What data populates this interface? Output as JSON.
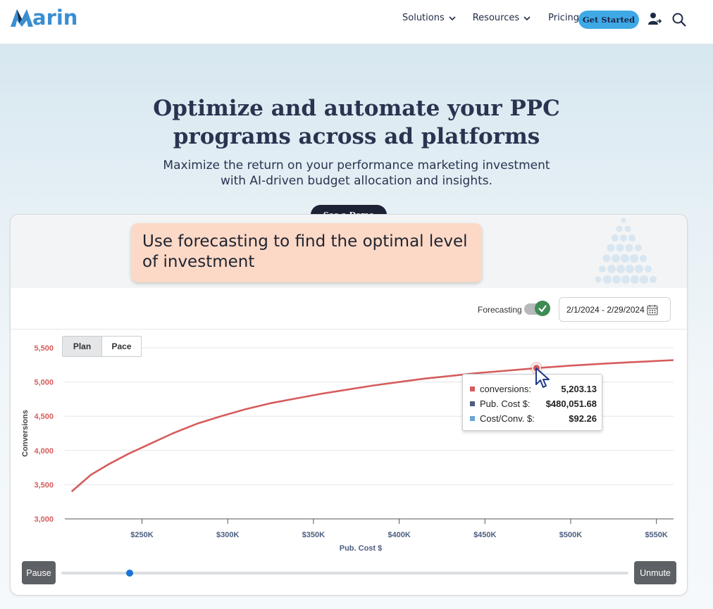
{
  "header": {
    "logo_text": "arin",
    "nav": [
      {
        "label": "Solutions",
        "has_dropdown": true
      },
      {
        "label": "Resources",
        "has_dropdown": true
      },
      {
        "label": "Pricing",
        "has_dropdown": false
      }
    ],
    "cta_label": "Get Started",
    "icons": [
      "user-arrow-icon",
      "search-icon"
    ]
  },
  "hero": {
    "title": "Optimize and automate your PPC programs across ad platforms",
    "subtitle": "Maximize the return on your performance marketing investment with AI-driven budget allocation and insights.",
    "demo_label": "See a Demo"
  },
  "card": {
    "callout": "Use forecasting to find the optimal level of investment",
    "forecasting_label": "Forecasting",
    "forecasting_on": true,
    "date_range": "2/1/2024 - 2/29/2024",
    "tabs": [
      "Plan",
      "Pace"
    ],
    "active_tab": "Plan",
    "tooltip": {
      "rows": [
        {
          "label": "conversions:",
          "value": "5,203.13",
          "color": "#d65c5c"
        },
        {
          "label": "Pub. Cost $:",
          "value": "$480,051.68",
          "color": "#4c5d80"
        },
        {
          "label": "Cost/Conv. $:",
          "value": "$92.26",
          "color": "#6aa5d6"
        }
      ]
    },
    "player": {
      "pause_label": "Pause",
      "unmute_label": "Unmute",
      "progress": 0.12
    }
  },
  "colors": {
    "brand_blue": "#3a8fd1",
    "cta_blue": "#3fa9e6",
    "dark_button": "#1e2235",
    "line_red": "#d65c5c",
    "callout_bg": "#fcd9c7",
    "toggle_green": "#3f8b54"
  },
  "chart_data": {
    "type": "line",
    "xlabel": "Pub. Cost $",
    "ylabel": "Conversions",
    "xlim": [
      205000,
      560000
    ],
    "ylim": [
      3000,
      5500
    ],
    "x_ticks": [
      250000,
      300000,
      350000,
      400000,
      450000,
      500000,
      550000
    ],
    "x_tick_labels": [
      "$250K",
      "$300K",
      "$350K",
      "$400K",
      "$450K",
      "$500K",
      "$550K"
    ],
    "y_ticks": [
      3000,
      3500,
      4000,
      4500,
      5000,
      5500
    ],
    "y_tick_labels": [
      "3,000",
      "3,500",
      "4,000",
      "4,500",
      "5,000",
      "5,500"
    ],
    "grid": true,
    "series": [
      {
        "color": "#d65c5c",
        "x": [
          209000,
          220000,
          230000,
          242000,
          255000,
          268000,
          282000,
          296000,
          310000,
          325000,
          340000,
          355000,
          370000,
          385000,
          400000,
          415000,
          430000,
          445000,
          460000,
          480000,
          500000,
          520000,
          540000,
          560000
        ],
        "y": [
          3400,
          3640,
          3790,
          3950,
          4100,
          4250,
          4390,
          4500,
          4600,
          4690,
          4760,
          4830,
          4890,
          4950,
          5000,
          5050,
          5090,
          5130,
          5160,
          5203,
          5240,
          5270,
          5295,
          5320
        ]
      }
    ],
    "highlight_point": {
      "x": 480051.68,
      "y": 5203.13
    }
  }
}
